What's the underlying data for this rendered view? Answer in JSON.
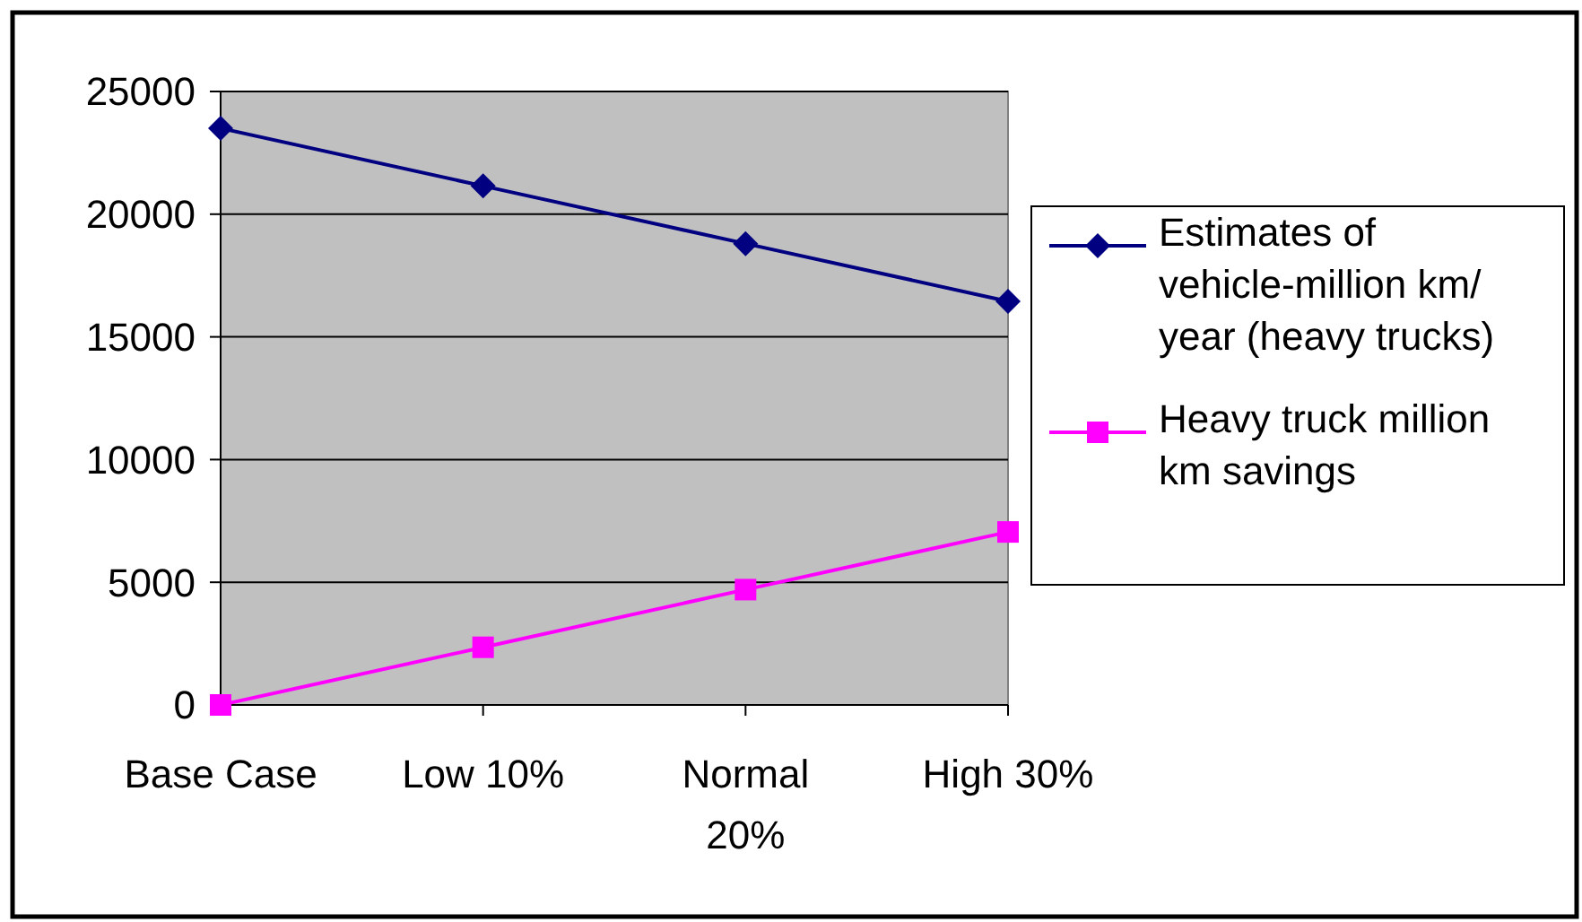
{
  "chart_data": {
    "type": "line",
    "categories": [
      "Base Case",
      "Low 10%",
      "Normal 20%",
      "High 30%"
    ],
    "series": [
      {
        "name": "Estimates of vehicle-million km/ year (heavy trucks)",
        "color": "#000080",
        "marker": "diamond",
        "values": [
          23500,
          21150,
          18800,
          16450
        ]
      },
      {
        "name": "Heavy truck million km savings",
        "color": "#ff00ff",
        "marker": "square",
        "values": [
          0,
          2350,
          4700,
          7050
        ]
      }
    ],
    "ylim": [
      0,
      25000
    ],
    "yticks": [
      0,
      5000,
      10000,
      15000,
      20000,
      25000
    ],
    "grid": "y",
    "legend": "right",
    "line_style": "solid"
  }
}
